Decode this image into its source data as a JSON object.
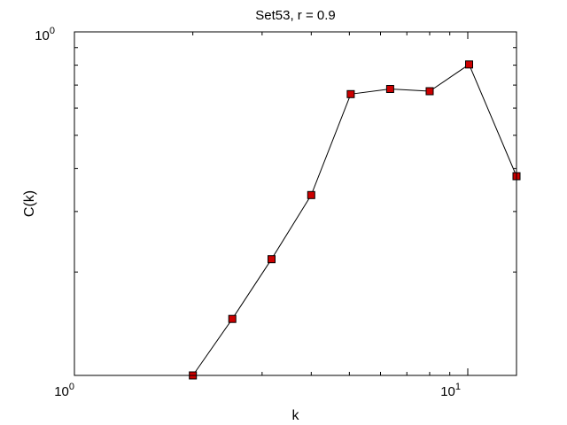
{
  "chart_data": {
    "type": "line",
    "title": "Set53, r = 0.9",
    "xlabel": "k",
    "ylabel": "C(k)",
    "xscale": "log",
    "yscale": "log",
    "xlim": [
      1,
      13.3
    ],
    "ylim": [
      0.1,
      1
    ],
    "x_tick_labels": [
      {
        "base": "10",
        "exp": "0",
        "value": 1
      },
      {
        "base": "10",
        "exp": "1",
        "value": 10
      }
    ],
    "y_tick_labels": [
      {
        "base": "10",
        "exp": "0",
        "value": 1
      }
    ],
    "grid": false,
    "series": [
      {
        "color": "#000000",
        "marker": "square",
        "marker_color": "#cc0000",
        "x": [
          2.0,
          2.52,
          3.17,
          4.0,
          5.04,
          6.35,
          8.0,
          10.08,
          13.3
        ],
        "y": [
          0.1,
          0.146,
          0.218,
          0.335,
          0.659,
          0.682,
          0.672,
          0.804,
          0.38
        ]
      }
    ]
  }
}
